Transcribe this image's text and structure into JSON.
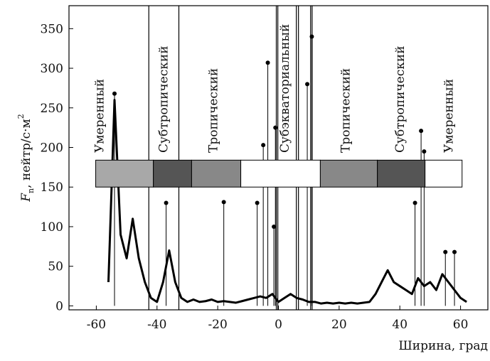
{
  "chart_data": {
    "type": "line",
    "xlabel": "Ширина, град",
    "ylabel": {
      "symbol": "F",
      "sub": "n",
      "rest": ", нейтр/с·м",
      "sup": "2"
    },
    "xlim": [
      -69,
      69
    ],
    "ylim": [
      -5,
      379
    ],
    "xticks": [
      -60,
      -40,
      -20,
      0,
      20,
      40,
      60
    ],
    "yticks": [
      0,
      50,
      100,
      150,
      200,
      250,
      300,
      350
    ],
    "series": [
      {
        "name": "Fn",
        "color": "#000000",
        "x": [
          -56,
          -54,
          -52,
          -50,
          -48,
          -46,
          -44,
          -42,
          -40,
          -38,
          -36,
          -34,
          -32,
          -30,
          -28,
          -26,
          -24,
          -22,
          -20,
          -18,
          -16,
          -14,
          -12,
          -10,
          -8,
          -6,
          -4,
          -2,
          0,
          2,
          4,
          6,
          8,
          10,
          12,
          14,
          16,
          18,
          20,
          22,
          24,
          26,
          28,
          30,
          32,
          34,
          36,
          38,
          40,
          42,
          44,
          46,
          48,
          50,
          52,
          54,
          56,
          58,
          60,
          62
        ],
        "y": [
          30,
          260,
          90,
          60,
          110,
          60,
          30,
          10,
          5,
          30,
          70,
          30,
          10,
          5,
          8,
          5,
          6,
          8,
          5,
          6,
          5,
          4,
          6,
          8,
          10,
          12,
          10,
          15,
          5,
          10,
          15,
          10,
          8,
          5,
          5,
          3,
          4,
          3,
          4,
          3,
          4,
          3,
          4,
          5,
          15,
          30,
          45,
          30,
          25,
          20,
          15,
          35,
          25,
          30,
          20,
          40,
          30,
          20,
          10,
          5
        ]
      }
    ],
    "spikes": {
      "x": [
        -54,
        -37,
        -18,
        -7,
        -5,
        -3.5,
        -1.5,
        -1,
        9.5,
        11,
        45,
        47,
        48,
        55,
        58
      ],
      "y": [
        268,
        130,
        131,
        130,
        203,
        307,
        100,
        225,
        280,
        340,
        130,
        221,
        195,
        68,
        68
      ]
    },
    "zone_band": [
      150,
      184
    ],
    "zones": [
      {
        "name": "Умеренный",
        "x0": -60.2,
        "x1": -41.2,
        "color": "#a8a8a8"
      },
      {
        "name": "Субтропический",
        "x0": -41.2,
        "x1": -28.6,
        "color": "#555555"
      },
      {
        "name": "Тропический",
        "x0": -28.6,
        "x1": -12.4,
        "color": "#888888"
      },
      {
        "name": "Субэкваториальный",
        "x0": -12.4,
        "x1": 13.8,
        "color": "#ffffff"
      },
      {
        "name": "Тропический",
        "x0": 13.8,
        "x1": 32.6,
        "color": "#888888"
      },
      {
        "name": "Субтропический",
        "x0": 32.6,
        "x1": 48.3,
        "color": "#555555"
      },
      {
        "name": "Умеренный",
        "x0": 48.3,
        "x1": 60.5,
        "color": "#ffffff"
      }
    ],
    "boundaries": [
      -42.7,
      -32.8,
      -0.7,
      -0.2,
      5.9,
      6.6,
      10.6,
      11.1
    ]
  }
}
